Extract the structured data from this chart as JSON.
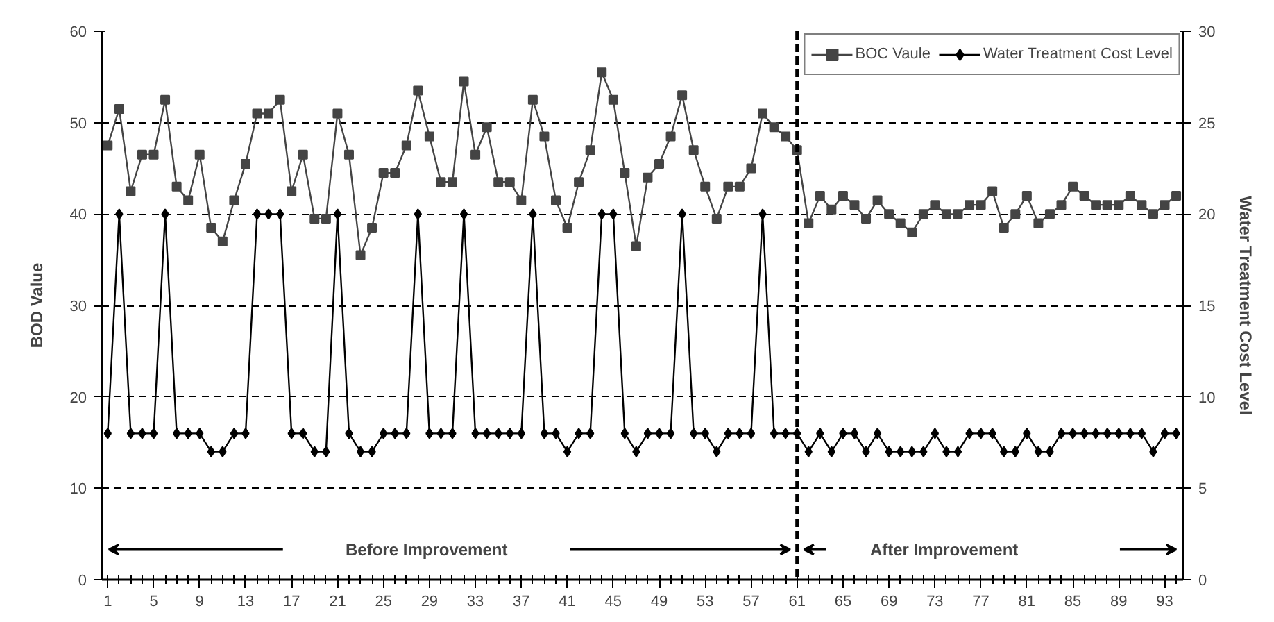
{
  "chart_data": {
    "type": "line",
    "xlabel": null,
    "ylabel": "BOD Value",
    "y2label": "Water Treatment Cost Level",
    "x": [
      1,
      2,
      3,
      4,
      5,
      6,
      7,
      8,
      9,
      10,
      11,
      12,
      13,
      14,
      15,
      16,
      17,
      18,
      19,
      20,
      21,
      22,
      23,
      24,
      25,
      26,
      27,
      28,
      29,
      30,
      31,
      32,
      33,
      34,
      35,
      36,
      37,
      38,
      39,
      40,
      41,
      42,
      43,
      44,
      45,
      46,
      47,
      48,
      49,
      50,
      51,
      52,
      53,
      54,
      55,
      56,
      57,
      58,
      59,
      60,
      61,
      62,
      63,
      64,
      65,
      66,
      67,
      68,
      69,
      70,
      71,
      72,
      73,
      74,
      75,
      76,
      77,
      78,
      79,
      80,
      81,
      82,
      83,
      84,
      85,
      86,
      87,
      88,
      89,
      90,
      91,
      92,
      93,
      94
    ],
    "series": [
      {
        "name": "BOC Vaule",
        "color": "#444444",
        "marker": "square",
        "values": [
          47.5,
          51.5,
          42.5,
          46.5,
          46.5,
          52.5,
          43,
          41.5,
          46.5,
          38.5,
          37,
          41.5,
          45.5,
          51,
          51,
          52.5,
          42.5,
          46.5,
          39.5,
          39.5,
          51,
          46.5,
          35.5,
          38.5,
          44.5,
          44.5,
          47.5,
          53.5,
          48.5,
          43.5,
          43.5,
          54.5,
          46.5,
          49.5,
          43.5,
          43.5,
          41.5,
          52.5,
          48.5,
          41.5,
          38.5,
          43.5,
          47,
          55.5,
          52.5,
          44.5,
          36.5,
          44,
          45.5,
          48.5,
          53,
          47,
          43,
          39.5,
          43,
          43,
          45,
          51,
          49.5,
          48.5,
          47,
          39,
          42,
          40.5,
          42,
          41,
          39.5,
          41.5,
          40,
          39,
          38,
          40,
          41,
          40,
          40,
          41,
          41,
          42.5,
          38.5,
          40,
          42,
          39,
          40,
          41,
          43,
          42,
          41,
          41,
          41,
          42,
          41,
          40,
          41,
          42
        ]
      },
      {
        "name": "Water Treatment Cost Level",
        "color": "#000000",
        "marker": "diamond",
        "axis": "y2",
        "values": [
          8,
          20,
          8,
          8,
          8,
          20,
          8,
          8,
          8,
          7,
          7,
          8,
          8,
          20,
          20,
          20,
          8,
          8,
          7,
          7,
          20,
          8,
          7,
          7,
          8,
          8,
          8,
          20,
          8,
          8,
          8,
          20,
          8,
          8,
          8,
          8,
          8,
          20,
          8,
          8,
          7,
          8,
          8,
          20,
          20,
          8,
          7,
          8,
          8,
          8,
          20,
          8,
          8,
          7,
          8,
          8,
          8,
          20,
          8,
          8,
          8,
          7,
          8,
          7,
          8,
          8,
          7,
          8,
          7,
          7,
          7,
          7,
          8,
          7,
          7,
          8,
          8,
          8,
          7,
          7,
          8,
          7,
          7,
          8,
          8,
          8,
          8,
          8,
          8,
          8,
          8,
          7,
          8,
          8
        ]
      }
    ],
    "xlim": [
      0.5,
      94.6
    ],
    "xticks": [
      1,
      5,
      9,
      13,
      17,
      21,
      25,
      29,
      33,
      37,
      41,
      45,
      49,
      53,
      57,
      61,
      65,
      69,
      73,
      77,
      81,
      85,
      89,
      93
    ],
    "ylim": [
      0,
      60
    ],
    "yticks": [
      0,
      10,
      20,
      30,
      40,
      50,
      60
    ],
    "y2lim": [
      0,
      30
    ],
    "y2ticks": [
      0,
      5,
      10,
      15,
      20,
      25,
      30
    ],
    "ref_lines": [
      {
        "axis": "x",
        "value": 61,
        "label": null,
        "color": "#000000",
        "line_style": "dashed"
      }
    ],
    "annotations": [
      "Before Improvement",
      "After Improvement"
    ],
    "grid": "y",
    "legend": "top right",
    "line_style": "solid"
  }
}
